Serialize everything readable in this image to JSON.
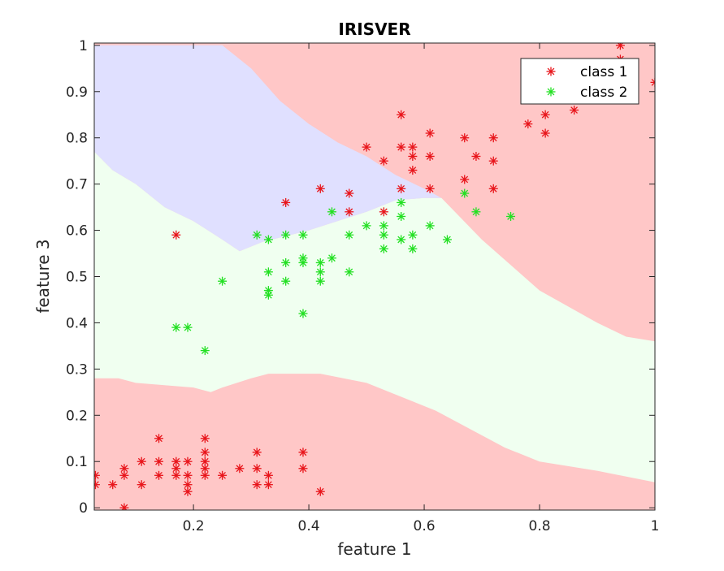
{
  "chart_data": {
    "type": "scatter",
    "title": "IRISVER",
    "xlabel": "feature 1",
    "ylabel": "feature 3",
    "xlim": [
      0.028,
      1.0
    ],
    "ylim": [
      -0.005,
      1.005
    ],
    "xticks": [
      0.2,
      0.4,
      0.6,
      0.8,
      1.0
    ],
    "xtick_labels": [
      "0.2",
      "0.4",
      "0.6",
      "0.8",
      "1"
    ],
    "yticks": [
      0,
      0.1,
      0.2,
      0.3,
      0.4,
      0.5,
      0.6,
      0.7,
      0.8,
      0.9,
      1.0
    ],
    "ytick_labels": [
      "0",
      "0.1",
      "0.2",
      "0.3",
      "0.4",
      "0.5",
      "0.6",
      "0.7",
      "0.8",
      "0.9",
      "1"
    ],
    "grid": false,
    "legend_position": "top-right",
    "marker": "asterisk",
    "colors": {
      "class1_marker": "#e8151b",
      "class2_marker": "#22e022",
      "region_red": "#ffc7c7",
      "region_green": "#f0fff0",
      "region_blue": "#e0e0ff"
    },
    "decision_regions": {
      "red_low_upper": [
        [
          0.028,
          0.28
        ],
        [
          0.07,
          0.28
        ],
        [
          0.1,
          0.27
        ],
        [
          0.2,
          0.26
        ],
        [
          0.23,
          0.25
        ],
        [
          0.25,
          0.26
        ],
        [
          0.3,
          0.28
        ],
        [
          0.33,
          0.29
        ],
        [
          0.42,
          0.29
        ],
        [
          0.5,
          0.27
        ],
        [
          0.56,
          0.24
        ],
        [
          0.62,
          0.21
        ],
        [
          0.68,
          0.17
        ],
        [
          0.74,
          0.13
        ],
        [
          0.8,
          0.1
        ],
        [
          0.9,
          0.08
        ],
        [
          1.0,
          0.055
        ]
      ],
      "green_upper": [
        [
          0.028,
          0.77
        ],
        [
          0.06,
          0.73
        ],
        [
          0.1,
          0.7
        ],
        [
          0.15,
          0.65
        ],
        [
          0.2,
          0.62
        ],
        [
          0.25,
          0.58
        ],
        [
          0.28,
          0.555
        ],
        [
          0.32,
          0.575
        ],
        [
          0.4,
          0.6
        ],
        [
          0.5,
          0.64
        ],
        [
          0.55,
          0.665
        ],
        [
          0.6,
          0.67
        ],
        [
          0.63,
          0.67
        ],
        [
          0.7,
          0.58
        ],
        [
          0.8,
          0.47
        ],
        [
          0.9,
          0.4
        ],
        [
          0.95,
          0.37
        ],
        [
          1.0,
          0.36
        ]
      ],
      "blue_upper": [
        [
          0.028,
          1.0
        ],
        [
          0.25,
          1.0
        ],
        [
          0.3,
          0.95
        ],
        [
          0.35,
          0.88
        ],
        [
          0.4,
          0.83
        ],
        [
          0.45,
          0.79
        ],
        [
          0.5,
          0.76
        ],
        [
          0.55,
          0.72
        ],
        [
          0.6,
          0.69
        ],
        [
          0.63,
          0.67
        ]
      ]
    },
    "series": [
      {
        "name": "class 1",
        "points": [
          [
            0.03,
            0.07
          ],
          [
            0.03,
            0.05
          ],
          [
            0.06,
            0.05
          ],
          [
            0.08,
            0.0
          ],
          [
            0.08,
            0.07
          ],
          [
            0.08,
            0.085
          ],
          [
            0.11,
            0.05
          ],
          [
            0.11,
            0.1
          ],
          [
            0.14,
            0.07
          ],
          [
            0.14,
            0.1
          ],
          [
            0.14,
            0.15
          ],
          [
            0.17,
            0.07
          ],
          [
            0.17,
            0.085
          ],
          [
            0.17,
            0.1
          ],
          [
            0.19,
            0.035
          ],
          [
            0.19,
            0.05
          ],
          [
            0.19,
            0.07
          ],
          [
            0.19,
            0.1
          ],
          [
            0.22,
            0.07
          ],
          [
            0.22,
            0.085
          ],
          [
            0.22,
            0.1
          ],
          [
            0.22,
            0.12
          ],
          [
            0.22,
            0.15
          ],
          [
            0.25,
            0.07
          ],
          [
            0.28,
            0.085
          ],
          [
            0.31,
            0.05
          ],
          [
            0.31,
            0.085
          ],
          [
            0.31,
            0.12
          ],
          [
            0.33,
            0.05
          ],
          [
            0.33,
            0.07
          ],
          [
            0.39,
            0.085
          ],
          [
            0.39,
            0.12
          ],
          [
            0.42,
            0.035
          ],
          [
            0.17,
            0.59
          ],
          [
            0.36,
            0.66
          ],
          [
            0.42,
            0.69
          ],
          [
            0.47,
            0.64
          ],
          [
            0.47,
            0.68
          ],
          [
            0.5,
            0.78
          ],
          [
            0.53,
            0.64
          ],
          [
            0.53,
            0.75
          ],
          [
            0.56,
            0.69
          ],
          [
            0.56,
            0.78
          ],
          [
            0.56,
            0.85
          ],
          [
            0.58,
            0.73
          ],
          [
            0.58,
            0.76
          ],
          [
            0.58,
            0.78
          ],
          [
            0.61,
            0.69
          ],
          [
            0.61,
            0.76
          ],
          [
            0.61,
            0.81
          ],
          [
            0.67,
            0.71
          ],
          [
            0.67,
            0.8
          ],
          [
            0.69,
            0.76
          ],
          [
            0.72,
            0.69
          ],
          [
            0.72,
            0.75
          ],
          [
            0.72,
            0.8
          ],
          [
            0.78,
            0.83
          ],
          [
            0.81,
            0.81
          ],
          [
            0.81,
            0.85
          ],
          [
            0.86,
            0.86
          ],
          [
            0.94,
            0.97
          ],
          [
            0.94,
            1.0
          ],
          [
            1.0,
            0.92
          ]
        ]
      },
      {
        "name": "class 2",
        "points": [
          [
            0.17,
            0.39
          ],
          [
            0.19,
            0.39
          ],
          [
            0.22,
            0.34
          ],
          [
            0.25,
            0.49
          ],
          [
            0.31,
            0.59
          ],
          [
            0.33,
            0.46
          ],
          [
            0.33,
            0.47
          ],
          [
            0.33,
            0.51
          ],
          [
            0.33,
            0.58
          ],
          [
            0.36,
            0.49
          ],
          [
            0.36,
            0.53
          ],
          [
            0.36,
            0.59
          ],
          [
            0.39,
            0.42
          ],
          [
            0.39,
            0.53
          ],
          [
            0.39,
            0.54
          ],
          [
            0.39,
            0.59
          ],
          [
            0.42,
            0.49
          ],
          [
            0.42,
            0.51
          ],
          [
            0.42,
            0.53
          ],
          [
            0.44,
            0.54
          ],
          [
            0.44,
            0.64
          ],
          [
            0.47,
            0.51
          ],
          [
            0.47,
            0.59
          ],
          [
            0.5,
            0.61
          ],
          [
            0.53,
            0.56
          ],
          [
            0.53,
            0.59
          ],
          [
            0.53,
            0.61
          ],
          [
            0.56,
            0.58
          ],
          [
            0.56,
            0.63
          ],
          [
            0.56,
            0.66
          ],
          [
            0.58,
            0.56
          ],
          [
            0.58,
            0.59
          ],
          [
            0.61,
            0.61
          ],
          [
            0.64,
            0.58
          ],
          [
            0.67,
            0.68
          ],
          [
            0.69,
            0.64
          ],
          [
            0.75,
            0.63
          ]
        ]
      }
    ]
  }
}
